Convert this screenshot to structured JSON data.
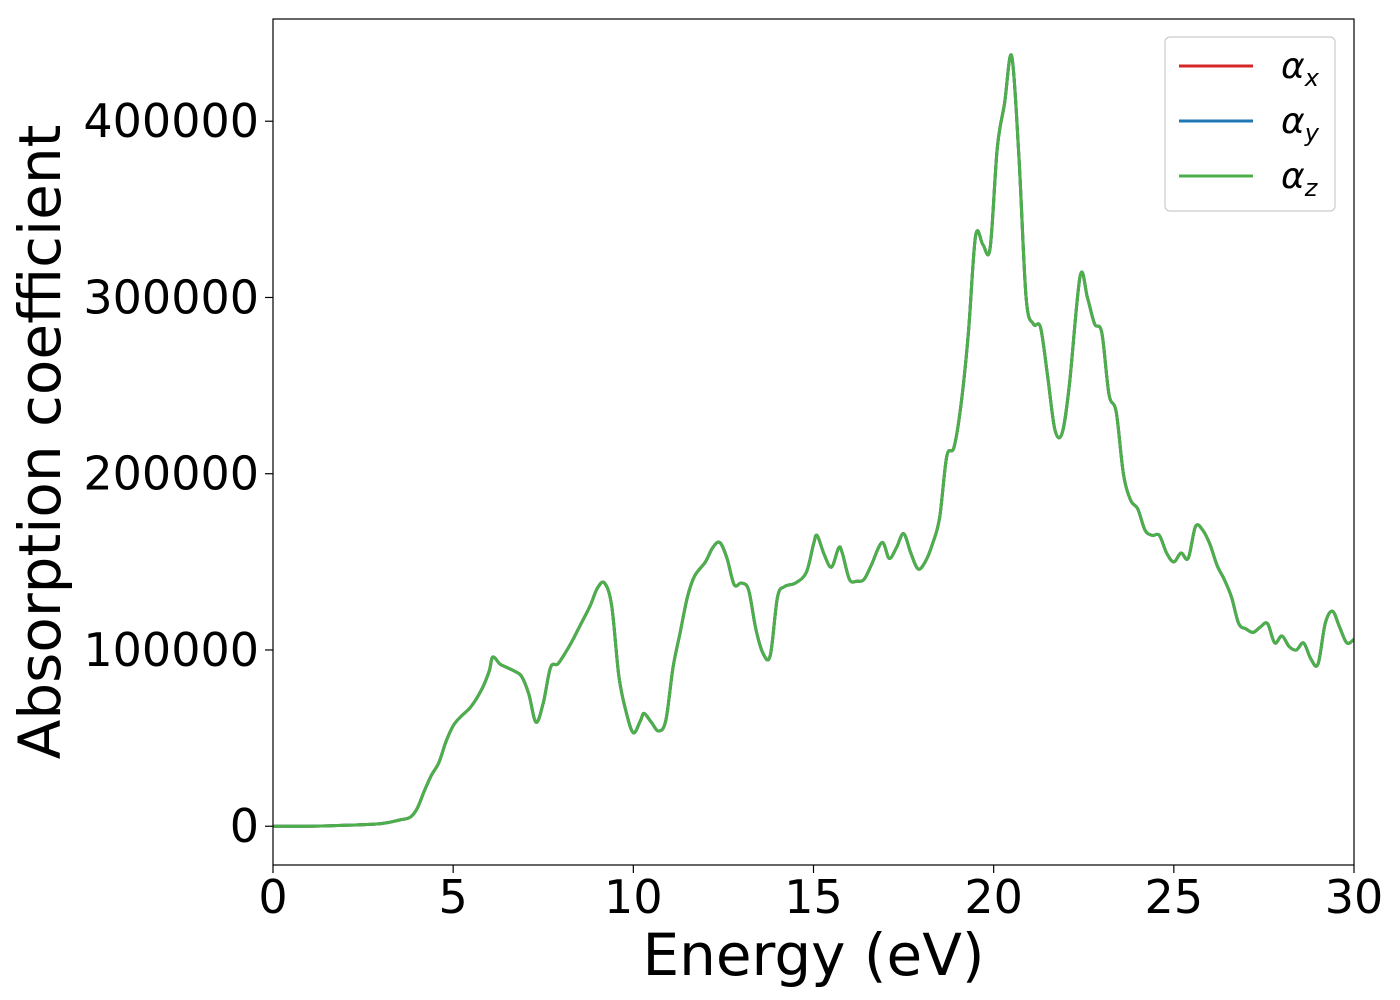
{
  "chart_data": {
    "type": "line",
    "title": "",
    "xlabel": "Energy (eV)",
    "ylabel": "Absorption coefficient",
    "xlim": [
      0,
      30
    ],
    "ylim": [
      -22000,
      458000
    ],
    "xticks": [
      0,
      5,
      10,
      15,
      20,
      25,
      30
    ],
    "xtick_labels": [
      "0",
      "5",
      "10",
      "15",
      "20",
      "25",
      "30"
    ],
    "yticks": [
      0,
      100000,
      200000,
      300000,
      400000
    ],
    "ytick_labels": [
      "0",
      "100000",
      "200000",
      "300000",
      "400000"
    ],
    "grid": false,
    "legend_position": "top-right",
    "series": [
      {
        "name": "αx",
        "legend_base": "α",
        "legend_sub": "x",
        "color": "#d62728",
        "x": [
          0,
          1,
          2,
          3,
          3.5,
          3.8,
          4.0,
          4.2,
          4.4,
          4.6,
          4.8,
          5.0,
          5.2,
          5.5,
          5.8,
          6.0,
          6.1,
          6.3,
          6.5,
          6.7,
          6.9,
          7.1,
          7.3,
          7.5,
          7.7,
          7.9,
          8.1,
          8.3,
          8.5,
          8.8,
          9.0,
          9.2,
          9.4,
          9.6,
          9.8,
          10.0,
          10.2,
          10.3,
          10.5,
          10.7,
          10.9,
          11.1,
          11.3,
          11.5,
          11.7,
          12.0,
          12.2,
          12.4,
          12.6,
          12.8,
          13.0,
          13.2,
          13.4,
          13.6,
          13.8,
          14.0,
          14.2,
          14.5,
          14.8,
          15.0,
          15.1,
          15.3,
          15.5,
          15.7,
          15.8,
          16.0,
          16.2,
          16.4,
          16.6,
          16.9,
          17.1,
          17.3,
          17.5,
          17.7,
          17.9,
          18.1,
          18.3,
          18.5,
          18.7,
          18.9,
          19.1,
          19.3,
          19.5,
          19.7,
          19.9,
          20.1,
          20.3,
          20.5,
          20.7,
          20.9,
          21.1,
          21.3,
          21.5,
          21.7,
          21.9,
          22.1,
          22.4,
          22.6,
          22.8,
          23.0,
          23.2,
          23.4,
          23.6,
          23.8,
          24.0,
          24.2,
          24.4,
          24.6,
          24.8,
          25.0,
          25.2,
          25.4,
          25.6,
          25.8,
          26.0,
          26.2,
          26.4,
          26.6,
          26.8,
          27.0,
          27.2,
          27.4,
          27.6,
          27.8,
          28.0,
          28.2,
          28.4,
          28.6,
          28.8,
          29.0,
          29.2,
          29.4,
          29.6,
          29.8,
          30.0
        ],
        "y": [
          0,
          0,
          500,
          1500,
          3500,
          5000,
          10000,
          20000,
          29000,
          36000,
          48000,
          57000,
          62000,
          68000,
          78000,
          88000,
          96000,
          92000,
          90000,
          88000,
          85000,
          75000,
          59000,
          70000,
          90000,
          92000,
          98000,
          105000,
          113000,
          125000,
          135000,
          138000,
          125000,
          85000,
          65000,
          53000,
          60000,
          64000,
          59000,
          54000,
          60000,
          90000,
          110000,
          130000,
          142000,
          150000,
          158000,
          161000,
          152000,
          137000,
          138000,
          134000,
          112000,
          98000,
          97000,
          130000,
          136000,
          138000,
          144000,
          160000,
          165000,
          154000,
          147000,
          158000,
          155000,
          140000,
          139000,
          140000,
          148000,
          161000,
          152000,
          158000,
          166000,
          155000,
          146000,
          150000,
          160000,
          175000,
          210000,
          215000,
          240000,
          280000,
          335000,
          330000,
          328000,
          385000,
          410000,
          437000,
          380000,
          300000,
          285000,
          283000,
          255000,
          225000,
          223000,
          250000,
          312000,
          300000,
          285000,
          280000,
          245000,
          235000,
          200000,
          185000,
          180000,
          168000,
          165000,
          165000,
          155000,
          150000,
          155000,
          152000,
          170000,
          168000,
          160000,
          148000,
          140000,
          130000,
          115000,
          112000,
          110000,
          113000,
          115000,
          104000,
          108000,
          102000,
          100000,
          104000,
          95000,
          92000,
          115000,
          122000,
          113000,
          104000,
          106000
        ]
      },
      {
        "name": "αy",
        "legend_base": "α",
        "legend_sub": "y",
        "color": "#1f77b4",
        "x": [
          0,
          1,
          2,
          3,
          3.5,
          3.8,
          4.0,
          4.2,
          4.4,
          4.6,
          4.8,
          5.0,
          5.2,
          5.5,
          5.8,
          6.0,
          6.1,
          6.3,
          6.5,
          6.7,
          6.9,
          7.1,
          7.3,
          7.5,
          7.7,
          7.9,
          8.1,
          8.3,
          8.5,
          8.8,
          9.0,
          9.2,
          9.4,
          9.6,
          9.8,
          10.0,
          10.2,
          10.3,
          10.5,
          10.7,
          10.9,
          11.1,
          11.3,
          11.5,
          11.7,
          12.0,
          12.2,
          12.4,
          12.6,
          12.8,
          13.0,
          13.2,
          13.4,
          13.6,
          13.8,
          14.0,
          14.2,
          14.5,
          14.8,
          15.0,
          15.1,
          15.3,
          15.5,
          15.7,
          15.8,
          16.0,
          16.2,
          16.4,
          16.6,
          16.9,
          17.1,
          17.3,
          17.5,
          17.7,
          17.9,
          18.1,
          18.3,
          18.5,
          18.7,
          18.9,
          19.1,
          19.3,
          19.5,
          19.7,
          19.9,
          20.1,
          20.3,
          20.5,
          20.7,
          20.9,
          21.1,
          21.3,
          21.5,
          21.7,
          21.9,
          22.1,
          22.4,
          22.6,
          22.8,
          23.0,
          23.2,
          23.4,
          23.6,
          23.8,
          24.0,
          24.2,
          24.4,
          24.6,
          24.8,
          25.0,
          25.2,
          25.4,
          25.6,
          25.8,
          26.0,
          26.2,
          26.4,
          26.6,
          26.8,
          27.0,
          27.2,
          27.4,
          27.6,
          27.8,
          28.0,
          28.2,
          28.4,
          28.6,
          28.8,
          29.0,
          29.2,
          29.4,
          29.6,
          29.8,
          30.0
        ],
        "y": [
          0,
          0,
          500,
          1500,
          3500,
          5000,
          10000,
          20000,
          29000,
          36000,
          48000,
          57000,
          62000,
          68000,
          78000,
          88000,
          96000,
          92000,
          90000,
          88000,
          85000,
          75000,
          59000,
          70000,
          90000,
          92000,
          98000,
          105000,
          113000,
          125000,
          135000,
          138000,
          125000,
          85000,
          65000,
          53000,
          60000,
          64000,
          59000,
          54000,
          60000,
          90000,
          110000,
          130000,
          142000,
          150000,
          158000,
          161000,
          152000,
          137000,
          138000,
          134000,
          112000,
          98000,
          97000,
          130000,
          136000,
          138000,
          144000,
          160000,
          165000,
          154000,
          147000,
          158000,
          155000,
          140000,
          139000,
          140000,
          148000,
          161000,
          152000,
          158000,
          166000,
          155000,
          146000,
          150000,
          160000,
          175000,
          210000,
          215000,
          240000,
          280000,
          335000,
          330000,
          328000,
          385000,
          410000,
          437000,
          380000,
          300000,
          285000,
          283000,
          255000,
          225000,
          223000,
          250000,
          312000,
          300000,
          285000,
          280000,
          245000,
          235000,
          200000,
          185000,
          180000,
          168000,
          165000,
          165000,
          155000,
          150000,
          155000,
          152000,
          170000,
          168000,
          160000,
          148000,
          140000,
          130000,
          115000,
          112000,
          110000,
          113000,
          115000,
          104000,
          108000,
          102000,
          100000,
          104000,
          95000,
          92000,
          115000,
          122000,
          113000,
          104000,
          106000
        ]
      },
      {
        "name": "αz",
        "legend_base": "α",
        "legend_sub": "z",
        "color": "#4daf4a",
        "x": [
          0,
          1,
          2,
          3,
          3.5,
          3.8,
          4.0,
          4.2,
          4.4,
          4.6,
          4.8,
          5.0,
          5.2,
          5.5,
          5.8,
          6.0,
          6.1,
          6.3,
          6.5,
          6.7,
          6.9,
          7.1,
          7.3,
          7.5,
          7.7,
          7.9,
          8.1,
          8.3,
          8.5,
          8.8,
          9.0,
          9.2,
          9.4,
          9.6,
          9.8,
          10.0,
          10.2,
          10.3,
          10.5,
          10.7,
          10.9,
          11.1,
          11.3,
          11.5,
          11.7,
          12.0,
          12.2,
          12.4,
          12.6,
          12.8,
          13.0,
          13.2,
          13.4,
          13.6,
          13.8,
          14.0,
          14.2,
          14.5,
          14.8,
          15.0,
          15.1,
          15.3,
          15.5,
          15.7,
          15.8,
          16.0,
          16.2,
          16.4,
          16.6,
          16.9,
          17.1,
          17.3,
          17.5,
          17.7,
          17.9,
          18.1,
          18.3,
          18.5,
          18.7,
          18.9,
          19.1,
          19.3,
          19.5,
          19.7,
          19.9,
          20.1,
          20.3,
          20.5,
          20.7,
          20.9,
          21.1,
          21.3,
          21.5,
          21.7,
          21.9,
          22.1,
          22.4,
          22.6,
          22.8,
          23.0,
          23.2,
          23.4,
          23.6,
          23.8,
          24.0,
          24.2,
          24.4,
          24.6,
          24.8,
          25.0,
          25.2,
          25.4,
          25.6,
          25.8,
          26.0,
          26.2,
          26.4,
          26.6,
          26.8,
          27.0,
          27.2,
          27.4,
          27.6,
          27.8,
          28.0,
          28.2,
          28.4,
          28.6,
          28.8,
          29.0,
          29.2,
          29.4,
          29.6,
          29.8,
          30.0
        ],
        "y": [
          0,
          0,
          500,
          1500,
          3500,
          5000,
          10000,
          20000,
          29000,
          36000,
          48000,
          57000,
          62000,
          68000,
          78000,
          88000,
          96000,
          92000,
          90000,
          88000,
          85000,
          75000,
          59000,
          70000,
          90000,
          92000,
          98000,
          105000,
          113000,
          125000,
          135000,
          138000,
          125000,
          85000,
          65000,
          53000,
          60000,
          64000,
          59000,
          54000,
          60000,
          90000,
          110000,
          130000,
          142000,
          150000,
          158000,
          161000,
          152000,
          137000,
          138000,
          134000,
          112000,
          98000,
          97000,
          130000,
          136000,
          138000,
          144000,
          160000,
          165000,
          154000,
          147000,
          158000,
          155000,
          140000,
          139000,
          140000,
          148000,
          161000,
          152000,
          158000,
          166000,
          155000,
          146000,
          150000,
          160000,
          175000,
          210000,
          215000,
          240000,
          280000,
          335000,
          330000,
          328000,
          385000,
          410000,
          437000,
          380000,
          300000,
          285000,
          283000,
          255000,
          225000,
          223000,
          250000,
          312000,
          300000,
          285000,
          280000,
          245000,
          235000,
          200000,
          185000,
          180000,
          168000,
          165000,
          165000,
          155000,
          150000,
          155000,
          152000,
          170000,
          168000,
          160000,
          148000,
          140000,
          130000,
          115000,
          112000,
          110000,
          113000,
          115000,
          104000,
          108000,
          102000,
          100000,
          104000,
          95000,
          92000,
          115000,
          122000,
          113000,
          104000,
          106000
        ]
      }
    ]
  }
}
